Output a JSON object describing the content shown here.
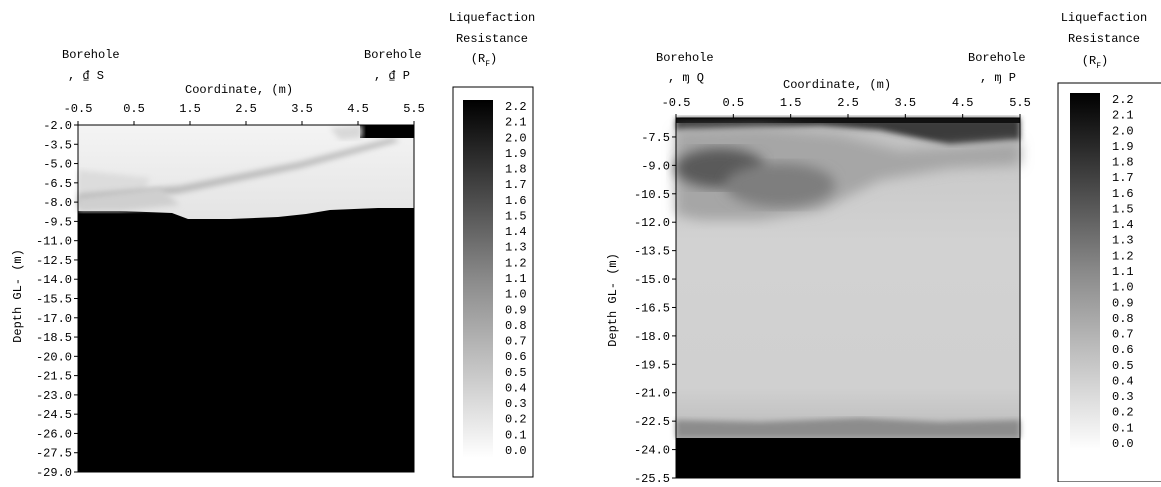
{
  "charts": [
    {
      "borehole_left": {
        "title": "Borehole",
        "id": ", ₫ S"
      },
      "borehole_right": {
        "title": "Borehole",
        "id": ", ₫ P"
      },
      "colorbar": {
        "title_line1": "Liquefaction",
        "title_line2": "Resistance",
        "symbol_open": "(R",
        "symbol_sub": "F",
        "symbol_close": ")"
      }
    },
    {
      "borehole_left": {
        "title": "Borehole",
        "id": ", ɱ Q"
      },
      "borehole_right": {
        "title": "Borehole",
        "id": ", ɱ P"
      },
      "colorbar": {
        "title_line1": "Liquefaction",
        "title_line2": "Resistance",
        "symbol_open": "(R",
        "symbol_sub": "F",
        "symbol_close": ")"
      }
    }
  ],
  "chart_data": [
    {
      "type": "heatmap",
      "xlabel": "Coordinate, (m)",
      "ylabel": "Depth GL- (m)",
      "x_ticks": [
        "-0.5",
        "0.5",
        "1.5",
        "2.5",
        "3.5",
        "4.5",
        "5.5"
      ],
      "y_ticks": [
        "-2.0",
        "-3.5",
        "-5.0",
        "-6.5",
        "-8.0",
        "-9.5",
        "-11.0",
        "-12.5",
        "-14.0",
        "-15.5",
        "-17.0",
        "-18.5",
        "-20.0",
        "-21.5",
        "-23.0",
        "-24.5",
        "-26.0",
        "-27.5",
        "-29.0"
      ],
      "xlim": [
        -0.5,
        5.5
      ],
      "ylim": [
        -29.0,
        -2.0
      ],
      "colorbar_ticks": [
        "2.2",
        "2.1",
        "2.0",
        "1.9",
        "1.8",
        "1.7",
        "1.6",
        "1.5",
        "1.4",
        "1.3",
        "1.2",
        "1.1",
        "1.0",
        "0.9",
        "0.8",
        "0.7",
        "0.6",
        "0.5",
        "0.4",
        "0.3",
        "0.2",
        "0.1",
        "0.0"
      ],
      "colorbar_range": [
        0.0,
        2.2
      ],
      "regions": [
        {
          "desc": "low-resistance upper layer",
          "value": 0.15
        },
        {
          "desc": "high-resistance lower layer",
          "value": 2.2
        },
        {
          "desc": "dense layer near right borehole top",
          "value": 2.2
        }
      ]
    },
    {
      "type": "heatmap",
      "xlabel": "Coordinate, (m)",
      "ylabel": "Depth GL- (m)",
      "x_ticks": [
        "-0.5",
        "0.5",
        "1.5",
        "2.5",
        "3.5",
        "4.5",
        "5.5"
      ],
      "y_ticks": [
        "-7.5",
        "-9.0",
        "-10.5",
        "-12.0",
        "-13.5",
        "-15.0",
        "-16.5",
        "-18.0",
        "-19.5",
        "-21.0",
        "-22.5",
        "-24.0",
        "-25.5"
      ],
      "xlim": [
        -0.5,
        5.5
      ],
      "ylim": [
        -25.5,
        -6.5
      ],
      "colorbar_ticks": [
        "2.2",
        "2.1",
        "2.0",
        "1.9",
        "1.8",
        "1.7",
        "1.6",
        "1.5",
        "1.4",
        "1.3",
        "1.2",
        "1.1",
        "1.0",
        "0.9",
        "0.8",
        "0.7",
        "0.6",
        "0.5",
        "0.4",
        "0.3",
        "0.2",
        "0.1",
        "0.0"
      ],
      "colorbar_range": [
        0.0,
        2.2
      ],
      "regions": [
        {
          "desc": "upper zone",
          "value": 1.0
        },
        {
          "desc": "middle zone",
          "value": 0.45
        },
        {
          "desc": "transition zone",
          "value": 1.3
        },
        {
          "desc": "bottom dense layer",
          "value": 2.2
        }
      ]
    }
  ]
}
